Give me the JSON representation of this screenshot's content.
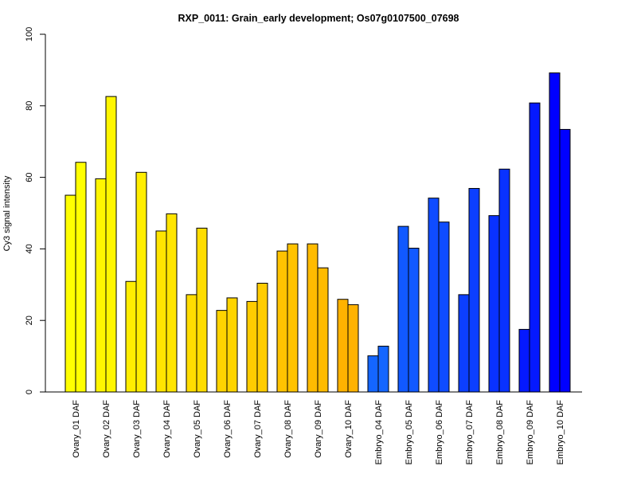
{
  "chart_data": {
    "type": "bar",
    "title": "RXP_0011: Grain_early development; Os07g0107500_07698",
    "xlabel": "",
    "ylabel": "Cy3 signal intensity",
    "ylim": [
      0,
      100
    ],
    "yticks": [
      0,
      20,
      40,
      60,
      80,
      100
    ],
    "grid": false,
    "categories": [
      "Ovary_01 DAF",
      "Ovary_02 DAF",
      "Ovary_03 DAF",
      "Ovary_04 DAF",
      "Ovary_05 DAF",
      "Ovary_06 DAF",
      "Ovary_07 DAF",
      "Ovary_08 DAF",
      "Ovary_09 DAF",
      "Ovary_10 DAF",
      "Embryo_04 DAF",
      "Embryo_05 DAF",
      "Embryo_06 DAF",
      "Embryo_07 DAF",
      "Embryo_08 DAF",
      "Embryo_09 DAF",
      "Embryo_10 DAF"
    ],
    "series": [
      {
        "values": [
          55.0,
          59.6,
          30.9,
          45.0,
          27.2,
          22.8,
          25.3,
          39.4,
          41.4,
          25.9,
          10.1,
          46.3,
          54.2,
          27.2,
          49.3,
          17.5,
          89.2
        ]
      },
      {
        "values": [
          64.2,
          82.6,
          61.4,
          49.8,
          45.8,
          26.3,
          30.4,
          41.4,
          34.7,
          24.4,
          12.8,
          40.2,
          47.5,
          56.9,
          62.3,
          80.8,
          73.4
        ]
      }
    ],
    "colors": [
      "#ffff00",
      "#fff600",
      "#ffee00",
      "#ffe500",
      "#ffdd00",
      "#ffd400",
      "#ffcc00",
      "#ffc300",
      "#ffbb00",
      "#ffb200",
      "#1466ff",
      "#1159ff",
      "#0f4cff",
      "#0c3fff",
      "#0932ff",
      "#0519ff",
      "#0000ff"
    ]
  }
}
